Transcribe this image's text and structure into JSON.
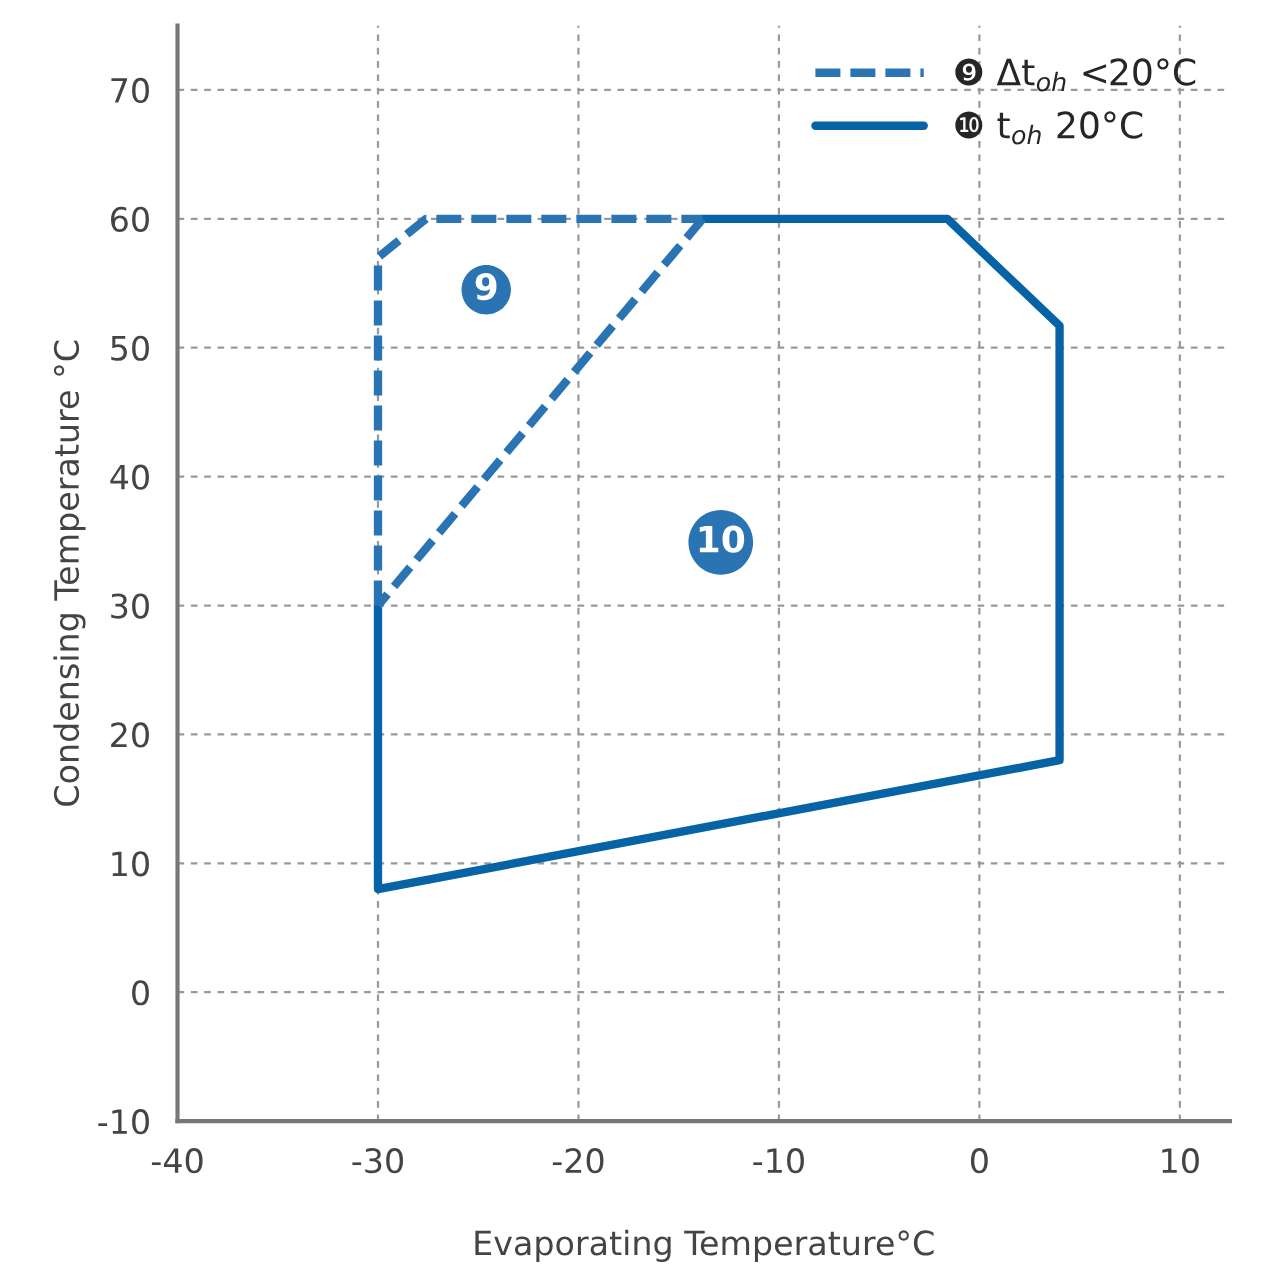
{
  "chart_data": {
    "type": "line",
    "xlabel": "Evaporating Temperature°C",
    "ylabel": "Condensing Temperature °C",
    "series": [
      {
        "name": "❾ Δt$_{oh}$ <20°C",
        "color": "#2a74b4",
        "line_style": "dashed",
        "x": [
          -30,
          -30,
          -27.6,
          -13.8,
          null,
          -13.8,
          -30
        ],
        "values": [
          30,
          57,
          60,
          60,
          null,
          60,
          30
        ]
      },
      {
        "name": "❿ t$_{oh}$ 20°C",
        "color": "#0563a6",
        "line_style": "solid",
        "x": [
          -13.8,
          -1.6,
          4,
          4,
          -30,
          -30
        ],
        "values": [
          60,
          60,
          51.7,
          18,
          8,
          30
        ]
      }
    ],
    "annotations": [
      {
        "text": "9",
        "x": -24.6,
        "y": 54.5
      },
      {
        "text": "10",
        "x": -12.9,
        "y": 34.9
      }
    ],
    "xlim": [
      -40,
      12.5
    ],
    "ylim": [
      -10,
      75
    ],
    "xticks": [
      -40,
      -30,
      -20,
      -10,
      0,
      10
    ],
    "yticks": [
      -10,
      0,
      10,
      20,
      30,
      40,
      50,
      60,
      70
    ],
    "grid": true,
    "legend": "top right",
    "marker": "none"
  }
}
